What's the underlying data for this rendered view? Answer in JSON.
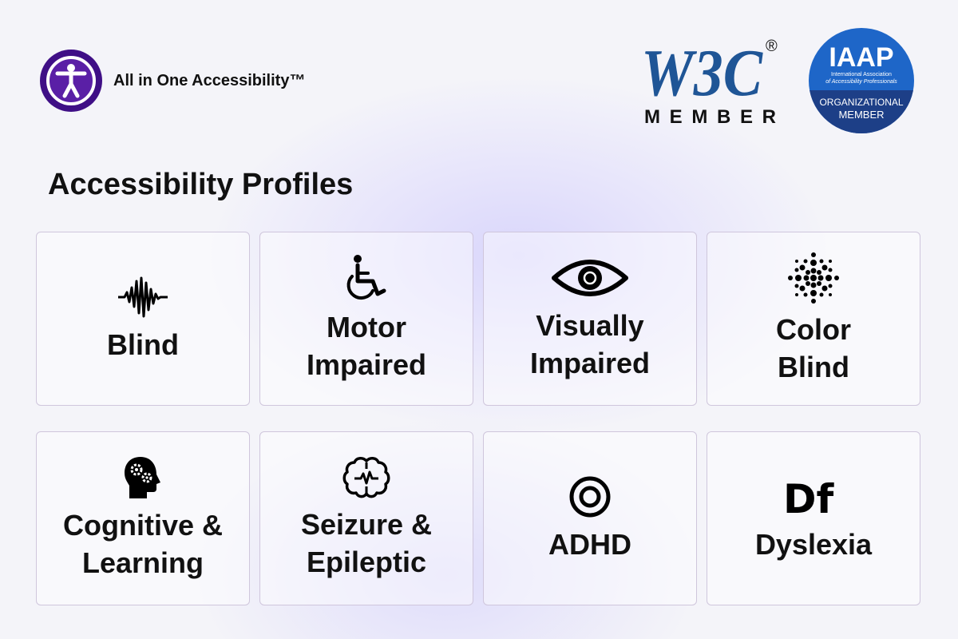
{
  "brand": {
    "name": "All in One Accessibility™",
    "logo_icon": "accessibility-person-icon",
    "logo_color": "#3f0f86"
  },
  "badges": {
    "w3c": {
      "logo": "W3C",
      "registered": "®",
      "caption": "MEMBER",
      "color": "#1f5596"
    },
    "iaap": {
      "title": "IAAP",
      "subtitle_line1": "International Association",
      "subtitle_line2": "of Accessibility Professionals",
      "caption_line1": "ORGANIZATIONAL",
      "caption_line2": "MEMBER",
      "color": "#1d3f87"
    }
  },
  "page_title": "Accessibility Profiles",
  "profiles": [
    {
      "label": "Blind",
      "icon": "sound-wave-icon"
    },
    {
      "label": "Motor\nImpaired",
      "icon": "wheelchair-icon"
    },
    {
      "label": "Visually\nImpaired",
      "icon": "eye-icon"
    },
    {
      "label": "Color\nBlind",
      "icon": "color-dots-icon"
    },
    {
      "label": "Cognitive &\nLearning",
      "icon": "head-gears-icon"
    },
    {
      "label": "Seizure &\nEpileptic",
      "icon": "brain-pulse-icon"
    },
    {
      "label": "ADHD",
      "icon": "target-icon"
    },
    {
      "label": "Dyslexia",
      "icon": "df-letters-icon",
      "icon_text": "Df"
    }
  ]
}
